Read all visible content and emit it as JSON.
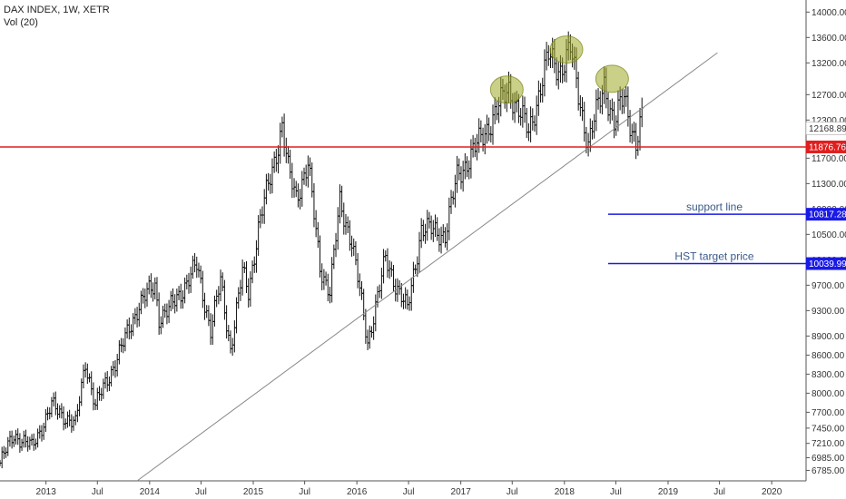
{
  "header": {
    "symbol_line": "DAX INDEX, 1W, XETR",
    "indicator_line": "Vol (20)"
  },
  "chart_data": {
    "type": "bar",
    "title": "DAX INDEX, 1W, XETR",
    "xlabel": "",
    "ylabel": "",
    "ylim": [
      6620,
      14190
    ],
    "xlim": [
      "2012-07-23",
      "2020-05-01"
    ],
    "grid": false,
    "y_ticks": [
      "14000.00",
      "13600.00",
      "13200.00",
      "12700.00",
      "12300.00",
      "11700.00",
      "11300.00",
      "10900.00",
      "10500.00",
      "10100.00",
      "9700.00",
      "9300.00",
      "8900.00",
      "8600.00",
      "8300.00",
      "8000.00",
      "7700.00",
      "7450.00",
      "7210.00",
      "6985.00",
      "6785.00"
    ],
    "x_ticks": [
      {
        "label": "2013",
        "date": "2013-01-01"
      },
      {
        "label": "Jul",
        "date": "2013-07-01"
      },
      {
        "label": "2014",
        "date": "2014-01-01"
      },
      {
        "label": "Jul",
        "date": "2014-07-01"
      },
      {
        "label": "2015",
        "date": "2015-01-01"
      },
      {
        "label": "Jul",
        "date": "2015-07-01"
      },
      {
        "label": "2016",
        "date": "2016-01-01"
      },
      {
        "label": "Jul",
        "date": "2016-07-01"
      },
      {
        "label": "2017",
        "date": "2017-01-01"
      },
      {
        "label": "Jul",
        "date": "2017-07-01"
      },
      {
        "label": "2018",
        "date": "2018-01-01"
      },
      {
        "label": "Jul",
        "date": "2018-07-01"
      },
      {
        "label": "2019",
        "date": "2019-01-01"
      },
      {
        "label": "Jul",
        "date": "2019-07-01"
      },
      {
        "label": "2020",
        "date": "2020-01-01"
      }
    ],
    "price_path": [
      [
        "2012-07-23",
        6900
      ],
      [
        "2012-09-10",
        7350
      ],
      [
        "2012-11-12",
        7150
      ],
      [
        "2013-01-21",
        7800
      ],
      [
        "2013-04-15",
        7500
      ],
      [
        "2013-05-20",
        8500
      ],
      [
        "2013-06-24",
        7800
      ],
      [
        "2013-09-23",
        8700
      ],
      [
        "2013-11-25",
        9400
      ],
      [
        "2014-01-20",
        9700
      ],
      [
        "2014-02-03",
        9200
      ],
      [
        "2014-03-10",
        9300
      ],
      [
        "2014-06-16",
        10000
      ],
      [
        "2014-08-04",
        9000
      ],
      [
        "2014-09-08",
        9750
      ],
      [
        "2014-10-13",
        8700
      ],
      [
        "2014-11-24",
        9900
      ],
      [
        "2014-12-15",
        9600
      ],
      [
        "2015-01-19",
        10600
      ],
      [
        "2015-04-13",
        12200
      ],
      [
        "2015-05-04",
        11500
      ],
      [
        "2015-06-01",
        11100
      ],
      [
        "2015-07-13",
        11600
      ],
      [
        "2015-08-24",
        10000
      ],
      [
        "2015-09-28",
        9600
      ],
      [
        "2015-11-02",
        11000
      ],
      [
        "2015-12-14",
        10400
      ],
      [
        "2016-02-08",
        8800
      ],
      [
        "2016-04-11",
        10100
      ],
      [
        "2016-06-27",
        9300
      ],
      [
        "2016-08-15",
        10600
      ],
      [
        "2016-11-07",
        10500
      ],
      [
        "2016-12-19",
        11400
      ],
      [
        "2017-03-13",
        12000
      ],
      [
        "2017-06-19",
        12800
      ],
      [
        "2017-08-28",
        12100
      ],
      [
        "2017-11-06",
        13300
      ],
      [
        "2017-12-18",
        13100
      ],
      [
        "2018-01-22",
        13400
      ],
      [
        "2018-03-26",
        11900
      ],
      [
        "2018-05-21",
        12900
      ],
      [
        "2018-06-25",
        12200
      ],
      [
        "2018-07-30",
        12700
      ],
      [
        "2018-09-10",
        11900
      ],
      [
        "2018-10-01",
        12300
      ]
    ],
    "highlights": [
      {
        "date": "2017-06-12",
        "value": 12780
      },
      {
        "date": "2018-01-08",
        "value": 13410
      },
      {
        "date": "2018-06-18",
        "value": 12950
      }
    ],
    "trendline": [
      [
        "2013-11-18",
        6620
      ],
      [
        "2019-06-24",
        13360
      ]
    ],
    "levels": [
      {
        "value": 11876.76,
        "label": "11876.76",
        "color": "#e01e1e",
        "from": "2012-07-23"
      },
      {
        "value": 10817.28,
        "label": "10817.28",
        "color": "#1a1ae6",
        "from": "2018-06-04",
        "text": "support line"
      },
      {
        "value": 10039.99,
        "label": "10039.99",
        "color": "#1a1ae6",
        "from": "2018-06-04",
        "text": "HST target price"
      }
    ],
    "last_price": {
      "value": 12168.89,
      "label": "12168.89"
    }
  }
}
